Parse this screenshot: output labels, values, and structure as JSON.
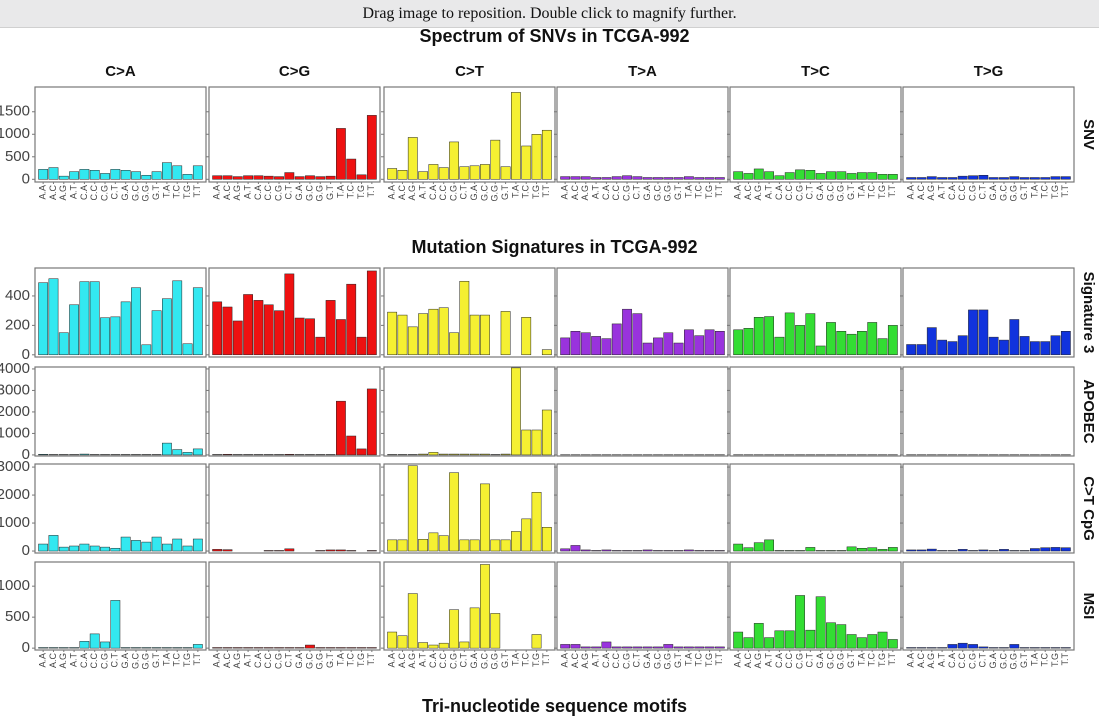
{
  "banner": "Drag image to reposition. Double click to magnify further.",
  "chart_data": [
    {
      "type": "bar",
      "title": "Spectrum of SNVs in TCGA-992",
      "row_label": "SNV",
      "columns": [
        "C>A",
        "C>G",
        "C>T",
        "T>A",
        "T>C",
        "T>G"
      ],
      "colors": [
        "#33e8f0",
        "#ee1111",
        "#f5f032",
        "#9933dd",
        "#33dd33",
        "#1133dd"
      ],
      "categories": [
        "A.A",
        "A.C",
        "A.G",
        "A.T",
        "C.A",
        "C.C",
        "C.G",
        "C.T",
        "G.A",
        "G.C",
        "G.G",
        "G.T",
        "T.A",
        "T.C",
        "T.G",
        "T.T"
      ],
      "values": [
        [
          220,
          260,
          70,
          170,
          220,
          200,
          130,
          220,
          200,
          170,
          90,
          170,
          370,
          300,
          110,
          300
        ],
        [
          80,
          80,
          60,
          80,
          80,
          70,
          60,
          150,
          60,
          80,
          60,
          70,
          1130,
          450,
          100,
          1420
        ],
        [
          240,
          200,
          930,
          170,
          330,
          260,
          830,
          280,
          300,
          330,
          870,
          280,
          1930,
          740,
          1000,
          1090
        ],
        [
          60,
          60,
          60,
          40,
          40,
          60,
          80,
          60,
          40,
          40,
          40,
          40,
          60,
          40,
          40,
          40
        ],
        [
          170,
          130,
          230,
          170,
          80,
          150,
          210,
          200,
          130,
          170,
          170,
          130,
          150,
          150,
          110,
          110
        ],
        [
          40,
          40,
          60,
          40,
          40,
          70,
          80,
          90,
          40,
          40,
          60,
          40,
          40,
          40,
          60,
          60
        ]
      ],
      "ylim": [
        -60,
        2050
      ],
      "yticks": [
        0,
        500,
        1000,
        1500
      ]
    },
    {
      "type": "bar",
      "title": "Mutation Signatures in TCGA-992",
      "row_label": "Signature 3",
      "values": [
        [
          490,
          517,
          150,
          340,
          497,
          497,
          252,
          258,
          360,
          456,
          68,
          300,
          381,
          503,
          75,
          456
        ],
        [
          360,
          325,
          230,
          410,
          370,
          340,
          300,
          550,
          250,
          245,
          120,
          370,
          240,
          480,
          120,
          570
        ],
        [
          290,
          270,
          190,
          280,
          310,
          320,
          150,
          500,
          270,
          270,
          0,
          295,
          0,
          255,
          0,
          35
        ],
        [
          115,
          160,
          150,
          125,
          110,
          210,
          310,
          280,
          80,
          115,
          150,
          80,
          170,
          130,
          170,
          160
        ],
        [
          170,
          180,
          255,
          260,
          120,
          285,
          200,
          280,
          60,
          220,
          160,
          140,
          160,
          220,
          110,
          200
        ],
        [
          70,
          70,
          185,
          100,
          90,
          130,
          305,
          305,
          120,
          100,
          240,
          125,
          90,
          90,
          130,
          160
        ]
      ],
      "ylim": [
        -15,
        590
      ],
      "yticks": [
        0,
        200,
        400
      ]
    },
    {
      "type": "bar",
      "row_label": "APOBEC",
      "values": [
        [
          30,
          20,
          20,
          20,
          40,
          20,
          20,
          20,
          20,
          20,
          20,
          20,
          550,
          250,
          120,
          280
        ],
        [
          20,
          30,
          20,
          20,
          20,
          20,
          20,
          30,
          20,
          20,
          20,
          20,
          2500,
          880,
          280,
          3070
        ],
        [
          20,
          20,
          20,
          40,
          120,
          40,
          40,
          40,
          40,
          40,
          20,
          40,
          4050,
          1160,
          1160,
          2090
        ],
        [
          10,
          10,
          10,
          10,
          10,
          10,
          10,
          10,
          10,
          10,
          10,
          10,
          10,
          10,
          10,
          10
        ],
        [
          10,
          10,
          10,
          10,
          10,
          10,
          10,
          10,
          10,
          10,
          10,
          10,
          10,
          10,
          10,
          10
        ],
        [
          10,
          10,
          10,
          10,
          10,
          10,
          10,
          10,
          10,
          10,
          10,
          10,
          10,
          10,
          10,
          10
        ]
      ],
      "ylim": [
        -50,
        4090
      ],
      "yticks": [
        0,
        1000,
        2000,
        3000,
        4000
      ]
    },
    {
      "type": "bar",
      "row_label": "C>T CpG",
      "values": [
        [
          250,
          560,
          140,
          180,
          250,
          180,
          140,
          100,
          500,
          380,
          320,
          500,
          250,
          430,
          180,
          430
        ],
        [
          60,
          50,
          0,
          0,
          0,
          20,
          20,
          80,
          0,
          0,
          20,
          40,
          40,
          20,
          0,
          20
        ],
        [
          400,
          400,
          3050,
          420,
          650,
          550,
          2800,
          400,
          400,
          2400,
          400,
          400,
          700,
          1150,
          2100,
          850
        ],
        [
          80,
          200,
          40,
          20,
          40,
          20,
          20,
          20,
          40,
          20,
          20,
          20,
          40,
          20,
          20,
          20
        ],
        [
          250,
          120,
          300,
          400,
          20,
          20,
          20,
          130,
          20,
          20,
          20,
          150,
          100,
          120,
          60,
          130
        ],
        [
          40,
          40,
          70,
          20,
          20,
          60,
          20,
          40,
          20,
          60,
          20,
          20,
          90,
          120,
          130,
          120
        ]
      ],
      "ylim": [
        -70,
        3110
      ],
      "yticks": [
        0,
        1000,
        2000,
        3000
      ]
    },
    {
      "type": "bar",
      "row_label": "MSI",
      "x_label": "Tri-nucleotide sequence motifs",
      "categories": [
        "A.A",
        "A.C",
        "A.G",
        "A.T",
        "C.A",
        "C.C",
        "C.G",
        "C.T",
        "G.A",
        "G.C",
        "G.G",
        "G.T",
        "T.A",
        "T.C",
        "T.G",
        "T.T"
      ],
      "values": [
        [
          10,
          10,
          10,
          10,
          110,
          230,
          100,
          770,
          10,
          10,
          10,
          10,
          10,
          10,
          10,
          60
        ],
        [
          10,
          10,
          10,
          10,
          10,
          10,
          10,
          10,
          10,
          50,
          10,
          10,
          10,
          10,
          10,
          10
        ],
        [
          260,
          200,
          880,
          90,
          50,
          80,
          620,
          100,
          650,
          1350,
          560,
          0,
          0,
          0,
          220,
          0
        ],
        [
          60,
          60,
          20,
          20,
          100,
          20,
          20,
          20,
          20,
          20,
          60,
          20,
          20,
          20,
          20,
          20
        ],
        [
          260,
          170,
          400,
          170,
          280,
          280,
          850,
          290,
          830,
          410,
          380,
          220,
          170,
          220,
          260,
          140
        ],
        [
          10,
          10,
          10,
          10,
          60,
          80,
          60,
          20,
          10,
          10,
          60,
          10,
          10,
          10,
          10,
          10
        ]
      ],
      "ylim": [
        -30,
        1390
      ],
      "yticks": [
        0,
        500,
        1000
      ]
    }
  ]
}
